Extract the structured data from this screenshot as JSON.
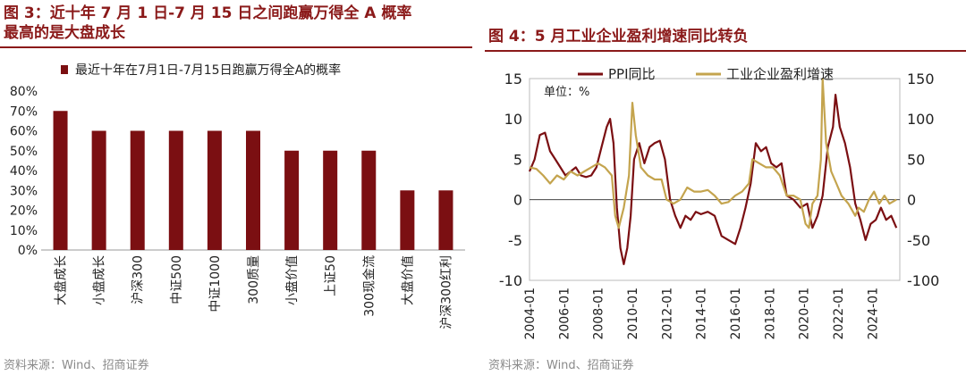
{
  "left": {
    "title_line1": "图 3：近十年 7 月 1 日-7 月 15 日之间跑赢万得全 A 概率",
    "title_line2": "最高的是大盘成长",
    "source": "资料来源：Wind、招商证券"
  },
  "right": {
    "title": "图 4：5 月工业企业盈利增速同比转负",
    "source": "资料来源：Wind、招商证券"
  },
  "chart_data": [
    {
      "type": "bar",
      "title": "",
      "legend": "最近十年在7月1日-7月15日跑赢万得全A的概率",
      "categories": [
        "大盘成长",
        "小盘成长",
        "沪深300",
        "中证500",
        "中证1000",
        "300质量",
        "小盘价值",
        "上证50",
        "300现金流",
        "大盘价值",
        "沪深300红利"
      ],
      "values": [
        70,
        60,
        60,
        60,
        60,
        60,
        50,
        50,
        50,
        30,
        30
      ],
      "ylim": [
        0,
        80
      ],
      "yticks": [
        "0%",
        "10%",
        "20%",
        "30%",
        "40%",
        "50%",
        "60%",
        "70%",
        "80%"
      ],
      "color": "#7b0f12"
    },
    {
      "type": "line",
      "unit_label": "单位：%",
      "x_ticks": [
        "2004-01",
        "2006-01",
        "2008-01",
        "2010-01",
        "2012-01",
        "2014-01",
        "2016-01",
        "2018-01",
        "2020-01",
        "2022-01",
        "2024-01"
      ],
      "x_range": [
        2004.0,
        2025.6
      ],
      "y_left": {
        "range": [
          -10,
          15
        ],
        "ticks": [
          "-10",
          "-5",
          "0",
          "5",
          "10",
          "15"
        ]
      },
      "y_right": {
        "range": [
          -100,
          150
        ],
        "ticks": [
          "-100",
          "-50",
          "0",
          "50",
          "100",
          "150"
        ]
      },
      "series": [
        {
          "name": "PPI同比",
          "axis": "left",
          "color": "#7b0f12",
          "x": [
            2004.0,
            2004.3,
            2004.6,
            2004.9,
            2005.2,
            2005.5,
            2005.8,
            2006.1,
            2006.4,
            2006.7,
            2007.0,
            2007.3,
            2007.6,
            2007.9,
            2008.2,
            2008.5,
            2008.7,
            2008.9,
            2009.1,
            2009.3,
            2009.5,
            2009.7,
            2009.9,
            2010.1,
            2010.4,
            2010.7,
            2011.0,
            2011.3,
            2011.6,
            2011.9,
            2012.2,
            2012.5,
            2012.8,
            2013.1,
            2013.4,
            2013.7,
            2014.0,
            2014.4,
            2014.8,
            2015.2,
            2015.6,
            2016.0,
            2016.3,
            2016.6,
            2016.9,
            2017.2,
            2017.5,
            2017.8,
            2018.1,
            2018.4,
            2018.7,
            2019.0,
            2019.4,
            2019.8,
            2020.2,
            2020.5,
            2020.8,
            2021.1,
            2021.4,
            2021.7,
            2021.85,
            2022.1,
            2022.4,
            2022.7,
            2023.0,
            2023.3,
            2023.6,
            2023.9,
            2024.2,
            2024.5,
            2024.8,
            2025.1,
            2025.4
          ],
          "y": [
            3.5,
            5.0,
            8.0,
            8.3,
            6.0,
            5.0,
            4.0,
            3.0,
            3.5,
            4.0,
            3.0,
            2.8,
            3.0,
            4.0,
            6.5,
            9.0,
            10.0,
            7.0,
            -1.0,
            -6.0,
            -8.0,
            -6.0,
            -2.0,
            5.0,
            7.0,
            4.5,
            6.5,
            7.0,
            7.3,
            5.0,
            0.0,
            -2.0,
            -3.5,
            -2.0,
            -2.5,
            -1.5,
            -1.8,
            -1.5,
            -2.0,
            -4.5,
            -5.0,
            -5.5,
            -3.5,
            -1.0,
            2.0,
            7.0,
            6.0,
            6.5,
            4.5,
            4.0,
            4.5,
            0.5,
            0.0,
            -1.0,
            -0.5,
            -3.5,
            -2.0,
            0.5,
            6.5,
            9.0,
            13.0,
            9.0,
            7.0,
            4.0,
            -0.5,
            -2.5,
            -5.0,
            -3.0,
            -2.5,
            -1.0,
            -2.5,
            -2.0,
            -3.5
          ]
        },
        {
          "name": "工业企业盈利增速",
          "axis": "right",
          "color": "#c4a44e",
          "x": [
            2004.0,
            2004.4,
            2004.8,
            2005.2,
            2005.6,
            2006.0,
            2006.4,
            2006.8,
            2007.2,
            2007.6,
            2008.0,
            2008.4,
            2008.8,
            2009.0,
            2009.2,
            2009.5,
            2009.8,
            2010.0,
            2010.2,
            2010.5,
            2010.9,
            2011.3,
            2011.7,
            2012.0,
            2012.4,
            2012.8,
            2013.2,
            2013.6,
            2014.0,
            2014.4,
            2014.8,
            2015.2,
            2015.6,
            2016.0,
            2016.4,
            2016.8,
            2017.0,
            2017.4,
            2017.8,
            2018.2,
            2018.6,
            2019.0,
            2019.4,
            2019.8,
            2020.1,
            2020.3,
            2020.5,
            2020.8,
            2021.0,
            2021.1,
            2021.3,
            2021.6,
            2021.9,
            2022.2,
            2022.6,
            2023.0,
            2023.2,
            2023.5,
            2023.8,
            2024.1,
            2024.4,
            2024.7,
            2025.0,
            2025.4
          ],
          "y": [
            40,
            38,
            30,
            20,
            30,
            25,
            35,
            30,
            35,
            40,
            45,
            40,
            30,
            -20,
            -35,
            -10,
            30,
            120,
            80,
            40,
            30,
            25,
            25,
            0,
            -5,
            0,
            15,
            10,
            10,
            12,
            5,
            -5,
            -3,
            5,
            10,
            20,
            50,
            45,
            40,
            40,
            30,
            5,
            5,
            0,
            -30,
            -35,
            -5,
            5,
            50,
            150,
            70,
            35,
            20,
            5,
            -5,
            -20,
            -10,
            -15,
            0,
            10,
            -5,
            5,
            -5,
            0
          ]
        }
      ]
    }
  ]
}
